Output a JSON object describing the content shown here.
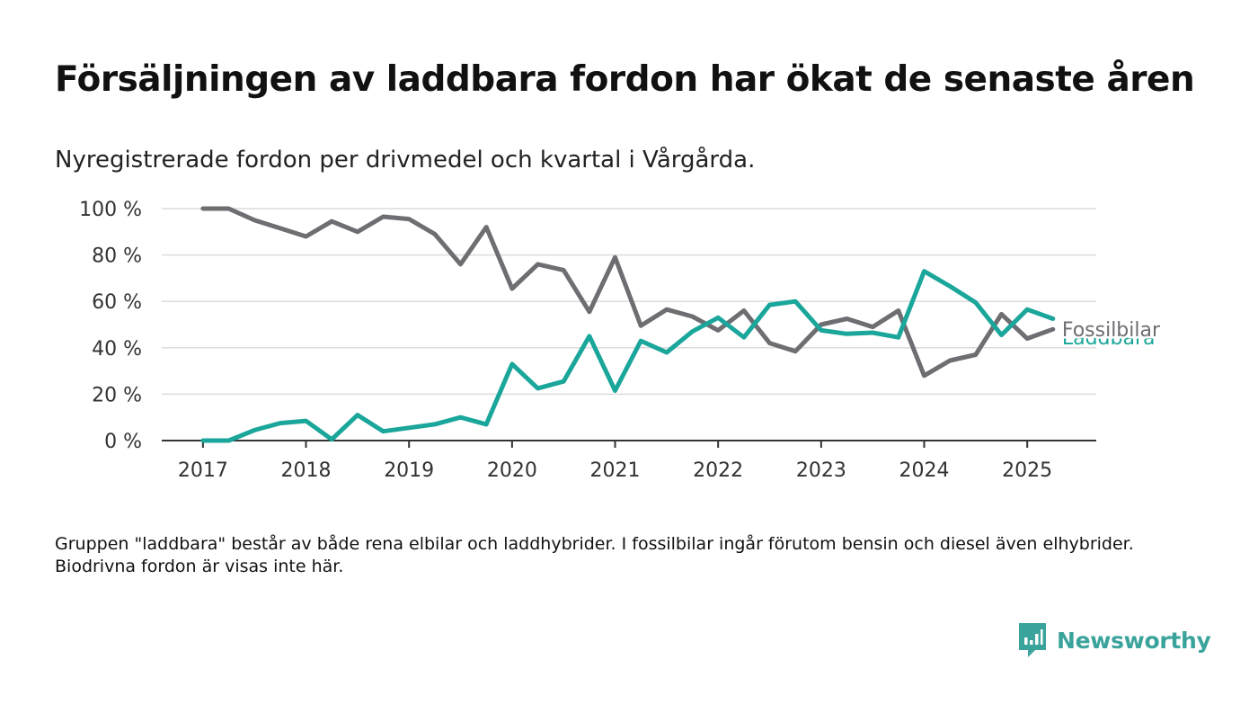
{
  "title": "Försäljningen av laddbara fordon har ökat de senaste åren",
  "subtitle": "Nyregistrerade fordon per drivmedel och kvartal i Vårgårda.",
  "note": "Gruppen \"laddbara\" består av både rena elbilar och laddhybrider. I fossilbilar ingår förutom bensin och diesel även elhybrider. Biodrivna fordon är visas inte här.",
  "brand": {
    "name": "Newsworthy",
    "icon": "newsworthy-logo-icon"
  },
  "colors": {
    "fossil": "#6d6d72",
    "laddbara": "#1aa69a",
    "grid": "#dcdcdc",
    "axis": "#333333"
  },
  "chart_data": {
    "type": "line",
    "x": [
      2017.0,
      2017.25,
      2017.5,
      2017.75,
      2018.0,
      2018.25,
      2018.5,
      2018.75,
      2019.0,
      2019.25,
      2019.5,
      2019.75,
      2020.0,
      2020.25,
      2020.5,
      2020.75,
      2021.0,
      2021.25,
      2021.5,
      2021.75,
      2022.0,
      2022.25,
      2022.5,
      2022.75,
      2023.0,
      2023.25,
      2023.5,
      2023.75,
      2024.0,
      2024.25,
      2024.5,
      2024.75,
      2025.0,
      2025.25
    ],
    "xticks": [
      "2017",
      "2018",
      "2019",
      "2020",
      "2021",
      "2022",
      "2023",
      "2024",
      "2025"
    ],
    "xtick_values": [
      2017,
      2018,
      2019,
      2020,
      2021,
      2022,
      2023,
      2024,
      2025
    ],
    "xlim": [
      2016.6,
      2025.67
    ],
    "ylim": [
      0,
      100
    ],
    "yticks": [
      0,
      20,
      40,
      60,
      80,
      100
    ],
    "ytick_labels": [
      "0 %",
      "20 %",
      "40 %",
      "60 %",
      "80 %",
      "100 %"
    ],
    "grid": true,
    "series": [
      {
        "name": "Fossilbilar",
        "key": "fossil",
        "values": [
          100,
          100,
          95,
          91.5,
          88,
          94.5,
          90,
          96.5,
          95.5,
          89,
          76,
          92,
          65.5,
          76,
          73.5,
          55.5,
          79,
          49.5,
          56.5,
          53.5,
          47.5,
          56,
          42,
          38.5,
          50,
          52.5,
          49,
          56,
          28,
          34.5,
          37,
          54.5,
          44,
          48
        ]
      },
      {
        "name": "Laddbara",
        "key": "laddbara",
        "values": [
          0,
          0,
          4.5,
          7.5,
          8.5,
          0.5,
          11,
          4,
          5.5,
          7,
          10,
          7,
          33,
          22.5,
          25.5,
          45,
          21.5,
          43,
          38,
          47,
          53,
          44.5,
          58.5,
          60,
          47.5,
          46,
          46.5,
          44.5,
          73,
          66.5,
          59.5,
          45.5,
          56.5,
          52.5
        ]
      }
    ]
  }
}
